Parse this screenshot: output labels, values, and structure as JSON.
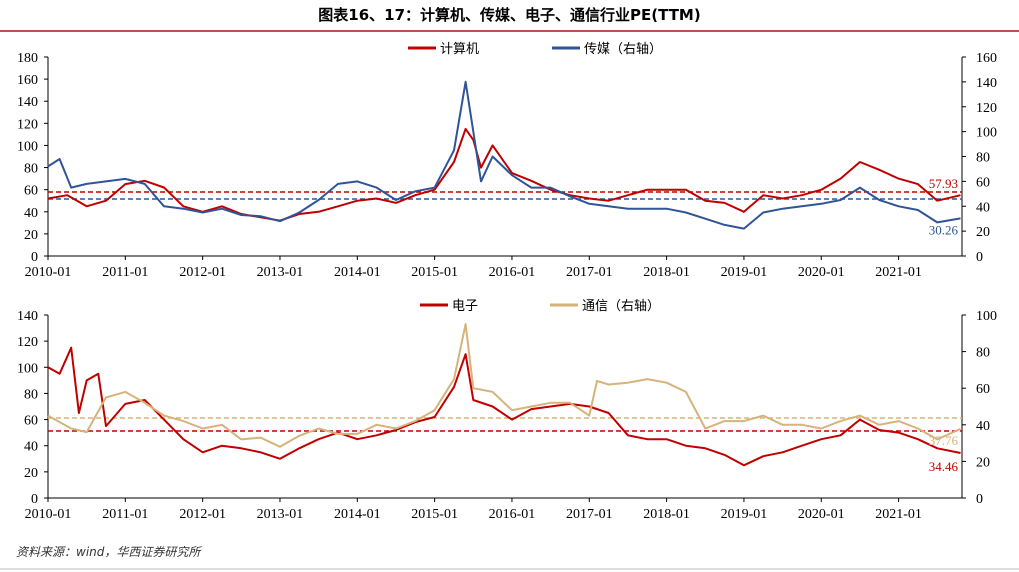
{
  "title": "图表16、17：计算机、传媒、电子、通信行业PE(TTM)",
  "source": "资料来源：wind，华西证券研究所",
  "chart_data": [
    {
      "type": "line",
      "title": "",
      "xticks": [
        "2010-01",
        "2011-01",
        "2012-01",
        "2013-01",
        "2014-01",
        "2015-01",
        "2016-01",
        "2017-01",
        "2018-01",
        "2019-01",
        "2020-01",
        "2021-01"
      ],
      "xlim": [
        2010.0,
        2021.82
      ],
      "ylim_left": [
        0,
        180
      ],
      "yticks_left": [
        0,
        20,
        40,
        60,
        80,
        100,
        120,
        140,
        160,
        180
      ],
      "ylim_right": [
        0,
        160
      ],
      "yticks_right": [
        0,
        20,
        40,
        60,
        80,
        100,
        120,
        140,
        160
      ],
      "legend_position": "top-center",
      "series": [
        {
          "name": "计算机",
          "axis": "left",
          "color": "#c00000",
          "x": [
            2010.0,
            2010.25,
            2010.5,
            2010.75,
            2011.0,
            2011.25,
            2011.5,
            2011.75,
            2012.0,
            2012.25,
            2012.5,
            2012.75,
            2013.0,
            2013.25,
            2013.5,
            2013.75,
            2014.0,
            2014.25,
            2014.5,
            2014.75,
            2015.0,
            2015.25,
            2015.4,
            2015.5,
            2015.6,
            2015.75,
            2016.0,
            2016.25,
            2016.5,
            2016.75,
            2017.0,
            2017.25,
            2017.5,
            2017.75,
            2018.0,
            2018.25,
            2018.5,
            2018.75,
            2019.0,
            2019.25,
            2019.5,
            2019.75,
            2020.0,
            2020.25,
            2020.5,
            2020.75,
            2021.0,
            2021.25,
            2021.5,
            2021.8
          ],
          "values": [
            52,
            55,
            45,
            50,
            65,
            68,
            62,
            45,
            40,
            45,
            38,
            35,
            32,
            38,
            40,
            45,
            50,
            52,
            48,
            55,
            60,
            85,
            115,
            105,
            80,
            100,
            75,
            68,
            60,
            55,
            52,
            50,
            55,
            60,
            60,
            60,
            50,
            48,
            40,
            55,
            52,
            55,
            60,
            70,
            85,
            78,
            70,
            65,
            50,
            55
          ]
        },
        {
          "name": "传媒（右轴）",
          "axis": "right",
          "color": "#2f5597",
          "x": [
            2010.0,
            2010.15,
            2010.3,
            2010.5,
            2010.75,
            2011.0,
            2011.25,
            2011.5,
            2011.75,
            2012.0,
            2012.25,
            2012.5,
            2012.75,
            2013.0,
            2013.25,
            2013.5,
            2013.75,
            2014.0,
            2014.25,
            2014.5,
            2014.75,
            2015.0,
            2015.25,
            2015.4,
            2015.5,
            2015.6,
            2015.75,
            2016.0,
            2016.25,
            2016.5,
            2016.75,
            2017.0,
            2017.25,
            2017.5,
            2017.75,
            2018.0,
            2018.25,
            2018.5,
            2018.75,
            2019.0,
            2019.25,
            2019.5,
            2019.75,
            2020.0,
            2020.25,
            2020.5,
            2020.75,
            2021.0,
            2021.25,
            2021.5,
            2021.8
          ],
          "values": [
            72,
            78,
            55,
            58,
            60,
            62,
            58,
            40,
            38,
            35,
            38,
            33,
            32,
            28,
            35,
            45,
            58,
            60,
            55,
            45,
            52,
            55,
            85,
            140,
            100,
            60,
            80,
            65,
            55,
            55,
            48,
            42,
            40,
            38,
            38,
            38,
            35,
            30,
            25,
            22,
            35,
            38,
            40,
            42,
            45,
            55,
            45,
            40,
            37,
            27,
            30.26
          ]
        }
      ],
      "reference_lines": [
        {
          "axis": "left",
          "value": 57.93,
          "color": "#c00000",
          "label": "57.93"
        },
        {
          "axis": "right",
          "value": 45.8,
          "color": "#2f5597"
        }
      ],
      "end_labels": [
        {
          "series": "传媒（右轴）",
          "label": "30.26",
          "value": 30.26,
          "axis": "right",
          "color": "#2f5597"
        }
      ]
    },
    {
      "type": "line",
      "title": "",
      "xticks": [
        "2010-01",
        "2011-01",
        "2012-01",
        "2013-01",
        "2014-01",
        "2015-01",
        "2016-01",
        "2017-01",
        "2018-01",
        "2019-01",
        "2020-01",
        "2021-01"
      ],
      "xlim": [
        2010.0,
        2021.82
      ],
      "ylim_left": [
        0,
        140
      ],
      "yticks_left": [
        0,
        20,
        40,
        60,
        80,
        100,
        120,
        140
      ],
      "ylim_right": [
        0,
        100
      ],
      "yticks_right": [
        0,
        20,
        40,
        60,
        80,
        100
      ],
      "legend_position": "top-center",
      "series": [
        {
          "name": "电子",
          "axis": "left",
          "color": "#c00000",
          "x": [
            2010.0,
            2010.15,
            2010.3,
            2010.4,
            2010.5,
            2010.65,
            2010.75,
            2011.0,
            2011.25,
            2011.5,
            2011.75,
            2012.0,
            2012.25,
            2012.5,
            2012.75,
            2013.0,
            2013.25,
            2013.5,
            2013.75,
            2014.0,
            2014.25,
            2014.5,
            2014.75,
            2015.0,
            2015.25,
            2015.4,
            2015.5,
            2015.75,
            2016.0,
            2016.25,
            2016.5,
            2016.75,
            2017.0,
            2017.25,
            2017.5,
            2017.75,
            2018.0,
            2018.25,
            2018.5,
            2018.75,
            2019.0,
            2019.25,
            2019.5,
            2019.75,
            2020.0,
            2020.25,
            2020.5,
            2020.75,
            2021.0,
            2021.25,
            2021.5,
            2021.8
          ],
          "values": [
            100,
            95,
            115,
            65,
            90,
            95,
            55,
            72,
            75,
            60,
            45,
            35,
            40,
            38,
            35,
            30,
            38,
            45,
            50,
            45,
            48,
            52,
            58,
            62,
            85,
            110,
            75,
            70,
            60,
            68,
            70,
            72,
            70,
            65,
            48,
            45,
            45,
            40,
            38,
            33,
            25,
            32,
            35,
            40,
            45,
            48,
            60,
            52,
            50,
            45,
            38,
            34.46
          ]
        },
        {
          "name": "通信（右轴）",
          "axis": "right",
          "color": "#d6b37a",
          "x": [
            2010.0,
            2010.3,
            2010.5,
            2010.75,
            2011.0,
            2011.25,
            2011.5,
            2011.75,
            2012.0,
            2012.25,
            2012.5,
            2012.75,
            2013.0,
            2013.25,
            2013.5,
            2013.75,
            2014.0,
            2014.25,
            2014.5,
            2014.75,
            2015.0,
            2015.25,
            2015.4,
            2015.5,
            2015.75,
            2016.0,
            2016.25,
            2016.5,
            2016.75,
            2017.0,
            2017.1,
            2017.25,
            2017.5,
            2017.75,
            2018.0,
            2018.25,
            2018.5,
            2018.75,
            2019.0,
            2019.25,
            2019.5,
            2019.75,
            2020.0,
            2020.25,
            2020.5,
            2020.75,
            2021.0,
            2021.25,
            2021.5,
            2021.8
          ],
          "values": [
            45,
            38,
            36,
            55,
            58,
            52,
            45,
            42,
            38,
            40,
            32,
            33,
            28,
            34,
            38,
            35,
            35,
            40,
            38,
            42,
            48,
            65,
            95,
            60,
            58,
            48,
            50,
            52,
            52,
            45,
            64,
            62,
            63,
            65,
            63,
            58,
            38,
            42,
            42,
            45,
            40,
            40,
            38,
            42,
            45,
            40,
            42,
            38,
            32,
            37.76
          ]
        }
      ],
      "reference_lines": [
        {
          "axis": "left",
          "value": 51.3,
          "color": "#c00000"
        },
        {
          "axis": "right",
          "value": 43.7,
          "color": "#d6b37a"
        }
      ],
      "end_labels": [
        {
          "series": "电子",
          "label": "34.46",
          "value": 34.46,
          "axis": "left",
          "color": "#c00000"
        },
        {
          "series": "通信（右轴）",
          "label": "37.76",
          "value": 37.76,
          "axis": "right",
          "color": "#d6b37a"
        }
      ]
    }
  ]
}
